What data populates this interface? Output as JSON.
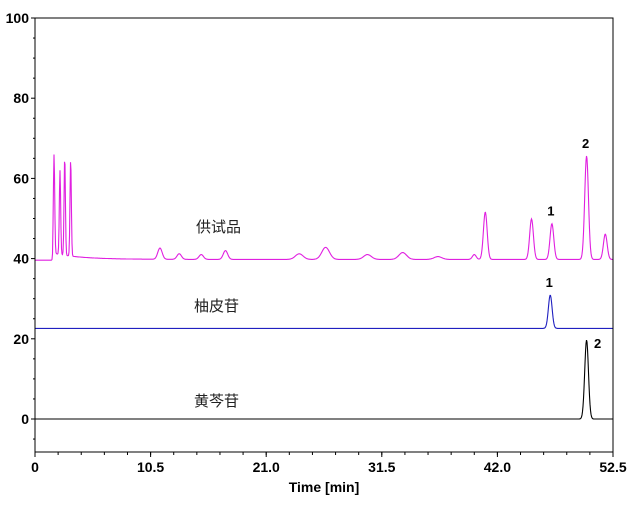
{
  "chart_data": {
    "type": "line",
    "xlabel": "Time [min]",
    "ylabel": "",
    "xlim": [
      0,
      52.5
    ],
    "ylim": [
      -8.2,
      100
    ],
    "xticks": [
      "0",
      "10.5",
      "21.0",
      "31.5",
      "42.0",
      "52.5"
    ],
    "yticks": [
      "0",
      "20",
      "40",
      "60",
      "80",
      "100"
    ],
    "grid": false,
    "series": [
      {
        "name": "供试品",
        "color": "#e020e0",
        "baseline": 39.8,
        "peaks": [
          {
            "t": 1.73,
            "y": 64.5
          },
          {
            "t": 2.27,
            "y": 60.8
          },
          {
            "t": 2.7,
            "y": 64.5
          },
          {
            "t": 3.24,
            "y": 64.0
          },
          {
            "t": 11.35,
            "y": 42.6
          },
          {
            "t": 13.1,
            "y": 41.2
          },
          {
            "t": 15.1,
            "y": 41.0
          },
          {
            "t": 17.3,
            "y": 42.0
          },
          {
            "t": 24.0,
            "y": 41.2
          },
          {
            "t": 26.4,
            "y": 42.8
          },
          {
            "t": 30.2,
            "y": 41.0
          },
          {
            "t": 33.4,
            "y": 41.5
          },
          {
            "t": 36.6,
            "y": 40.5
          },
          {
            "t": 39.9,
            "y": 41.0
          },
          {
            "t": 40.9,
            "y": 51.6
          },
          {
            "t": 45.1,
            "y": 49.9
          },
          {
            "t": 46.95,
            "y": 48.7,
            "label": "1"
          },
          {
            "t": 50.1,
            "y": 65.6,
            "label": "2"
          },
          {
            "t": 51.8,
            "y": 46.1
          }
        ]
      },
      {
        "name": "柚皮苷",
        "color": "#2020c0",
        "baseline": 22.6,
        "peaks": [
          {
            "t": 46.8,
            "y": 30.9,
            "label": "1"
          }
        ]
      },
      {
        "name": "黄芩苷",
        "color": "#000000",
        "baseline": 0,
        "peaks": [
          {
            "t": 50.1,
            "y": 19.7,
            "label": "2"
          }
        ]
      }
    ]
  }
}
